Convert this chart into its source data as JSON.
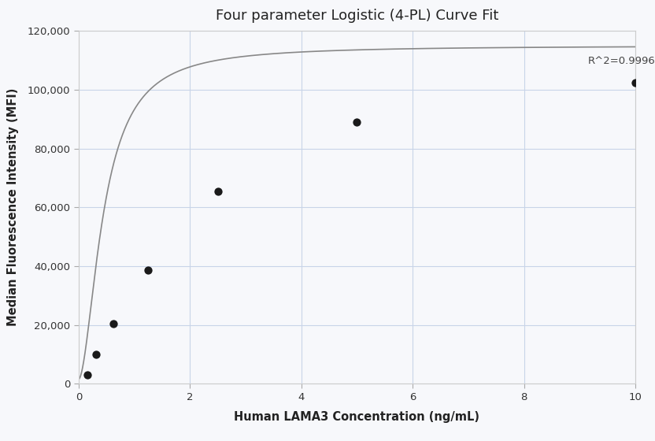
{
  "title": "Four parameter Logistic (4-PL) Curve Fit",
  "xlabel": "Human LAMA3 Concentration (ng/mL)",
  "ylabel": "Median Fluorescence Intensity (MFI)",
  "scatter_x": [
    0.156,
    0.313,
    0.625,
    1.25,
    2.5,
    5.0,
    10.0
  ],
  "scatter_y": [
    3000,
    10000,
    20500,
    38500,
    65500,
    89000,
    102500
  ],
  "xlim": [
    0,
    10
  ],
  "ylim": [
    0,
    120000
  ],
  "yticks": [
    0,
    20000,
    40000,
    60000,
    80000,
    100000,
    120000
  ],
  "xticks": [
    0,
    2,
    4,
    6,
    8,
    10
  ],
  "r_squared": "R^2=0.9996",
  "scatter_color": "#1a1a1a",
  "line_color": "#888888",
  "grid_color": "#c8d4e8",
  "background_color": "#f7f8fb",
  "title_fontsize": 13,
  "label_fontsize": 10.5,
  "tick_fontsize": 9.5,
  "annotation_fontsize": 9.5,
  "4pl_A": 1500,
  "4pl_B": 1.8,
  "4pl_C": 0.45,
  "4pl_D": 115000
}
